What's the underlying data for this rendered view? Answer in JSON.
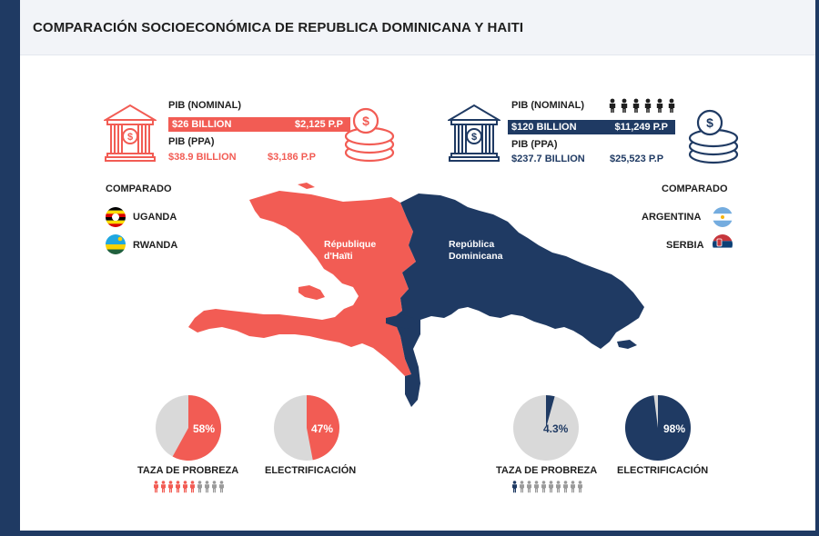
{
  "title": "COMPARACIÓN SOCIOECONÓMICA DE REPUBLICA DOMINICANA Y HAITI",
  "colors": {
    "haiti": "#f25c54",
    "dominicana": "#1f3a63",
    "neutral": "#d9d9d9"
  },
  "haiti": {
    "pib_nominal_label": "PIB (NOMINAL)",
    "pib_nominal_value": "$26 BILLION",
    "pib_nominal_pc": "$2,125  P.P",
    "pib_ppa_label": "PIB (PPA)",
    "pib_ppa_value": "$38.9 BILLION",
    "pib_ppa_pc": "$3,186  P.P",
    "compared_label": "COMPARADO",
    "compared": [
      "UGANDA",
      "RWANDA"
    ],
    "map_label_1": "République",
    "map_label_2": "d'Haïti",
    "poverty_pct": "58%",
    "poverty_value": 58,
    "poverty_label": "TAZA DE PROBREZA",
    "electrification_pct": "47%",
    "electrification_value": 47,
    "electrification_label": "ELECTRIFICACIÓN",
    "people_highlighted": 6,
    "people_total": 10
  },
  "dominicana": {
    "pib_nominal_label": "PIB (NOMINAL)",
    "pib_nominal_value": "$120 BILLION",
    "pib_nominal_pc": "$11,249  P.P",
    "pib_ppa_label": "PIB (PPA)",
    "pib_ppa_value": "$237.7 BILLION",
    "pib_ppa_pc": "$25,523  P.P",
    "compared_label": "COMPARADO",
    "compared": [
      "ARGENTINA",
      "SERBIA"
    ],
    "map_label_1": "República",
    "map_label_2": "Dominicana",
    "poverty_pct": "4.3%",
    "poverty_value": 4.3,
    "poverty_label": "TAZA DE PROBREZA",
    "electrification_pct": "98%",
    "electrification_value": 98,
    "electrification_label": "ELECTRIFICACIÓN",
    "people_highlighted": 1,
    "people_total": 10
  }
}
